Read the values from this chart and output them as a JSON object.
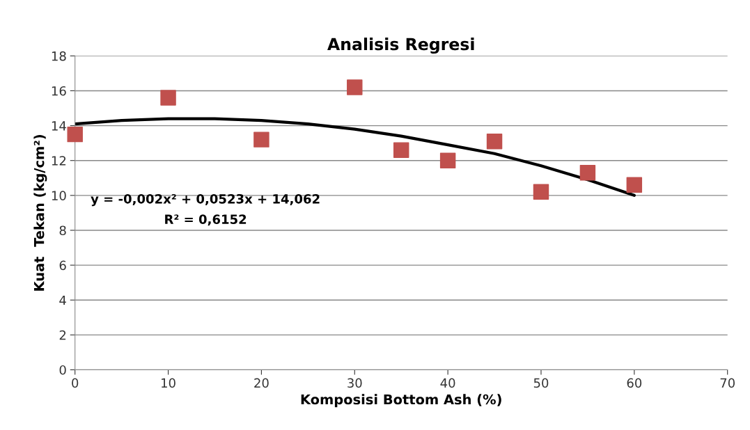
{
  "chart_data": {
    "type": "scatter",
    "title": "Analisis Regresi",
    "xlabel": "Komposisi Bottom Ash (%)",
    "ylabel": "Kuat  Tekan (kg/cm²)",
    "xlim": [
      0,
      70
    ],
    "xticks": [
      0,
      10,
      20,
      30,
      40,
      50,
      60,
      70
    ],
    "ylim": [
      0,
      18
    ],
    "yticks": [
      0,
      2,
      4,
      6,
      8,
      10,
      12,
      14,
      16,
      18
    ],
    "grid": "y",
    "legend": false,
    "series": [
      {
        "color": "#c0504d",
        "marker": "square",
        "x": [
          0,
          10,
          20,
          30,
          35,
          40,
          45,
          50,
          55,
          60
        ],
        "values": [
          13.5,
          15.6,
          13.2,
          16.2,
          12.6,
          12.0,
          13.1,
          10.2,
          11.3,
          10.6
        ]
      },
      {
        "type": "line",
        "color": "#000000",
        "marker": "none",
        "line_style": "solid",
        "x": [
          0,
          5,
          10,
          15,
          20,
          25,
          30,
          35,
          40,
          45,
          50,
          55,
          60
        ],
        "values": [
          14.1,
          14.3,
          14.4,
          14.4,
          14.3,
          14.1,
          13.8,
          13.4,
          12.9,
          12.4,
          11.7,
          10.9,
          10.0
        ]
      }
    ],
    "annotations": [
      "y = -0,002x² + 0,0523x + 14,062",
      "R² = 0,6152"
    ]
  }
}
